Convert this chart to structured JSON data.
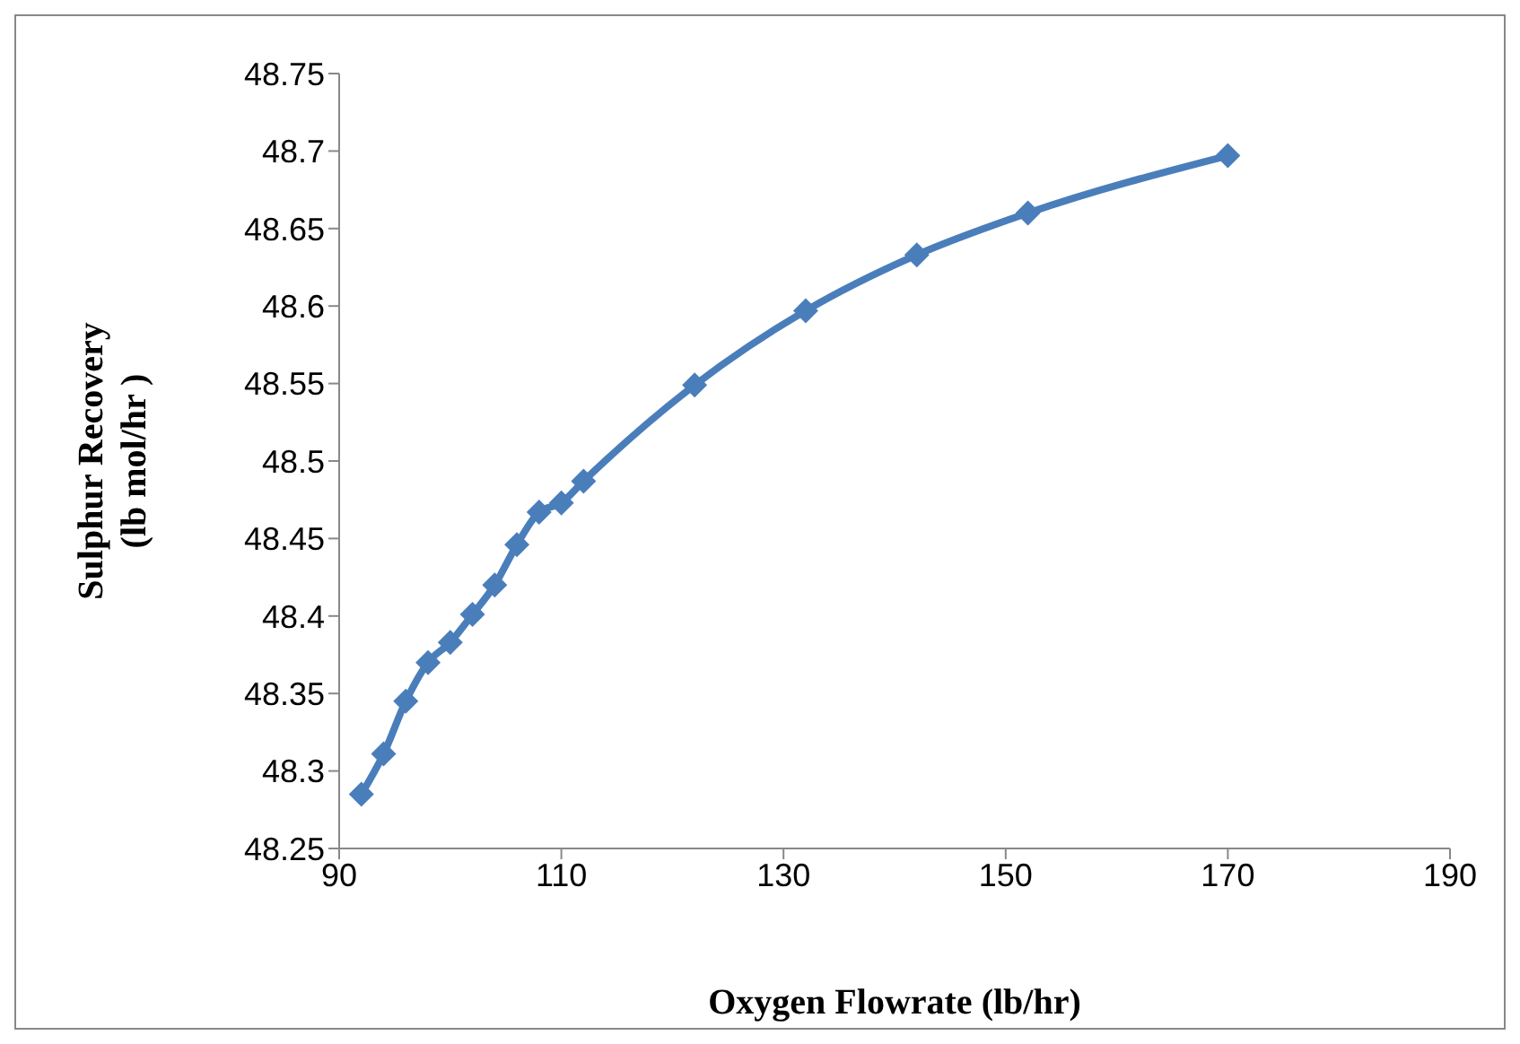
{
  "chart_data": {
    "type": "line",
    "xlabel": "Oxygen Flowrate (lb/hr)",
    "ylabel": "Sulphur Recovery\n(lb mol/hr )",
    "x": [
      92,
      94,
      96,
      98,
      100,
      102,
      104,
      106,
      108,
      110,
      112,
      122,
      132,
      142,
      152,
      170
    ],
    "series": [
      {
        "color": "#4a7ebb",
        "values": [
          48.285,
          48.311,
          48.345,
          48.37,
          48.383,
          48.401,
          48.42,
          48.446,
          48.467,
          48.473,
          48.487,
          48.549,
          48.597,
          48.633,
          48.66,
          48.697
        ]
      }
    ],
    "xlim": [
      90,
      190
    ],
    "xticks": [
      90,
      110,
      130,
      150,
      170,
      190
    ],
    "ylim": [
      48.25,
      48.75
    ],
    "yticks": [
      48.25,
      48.3,
      48.35,
      48.4,
      48.45,
      48.5,
      48.55,
      48.6,
      48.65,
      48.7,
      48.75
    ],
    "grid": false,
    "legend": false,
    "marker": "diamond",
    "line_style": "solid"
  }
}
